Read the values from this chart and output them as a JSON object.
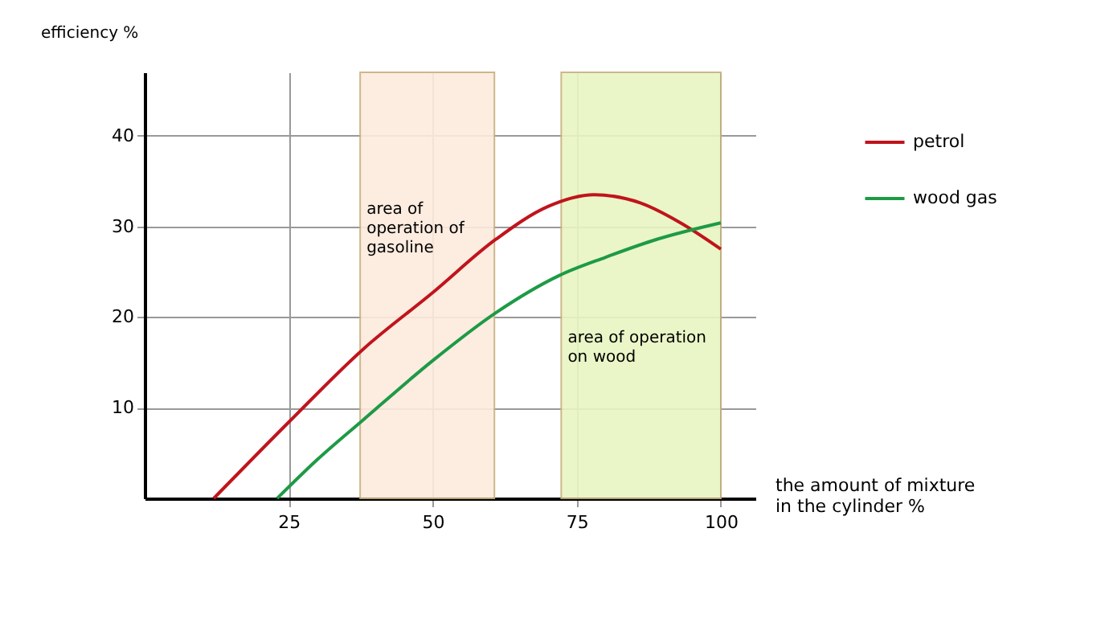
{
  "chart_data": {
    "type": "line",
    "xlabel": "the amount of mixture\nin the cylinder %",
    "ylabel": "efficiency %",
    "xlim": [
      0,
      106
    ],
    "ylim": [
      0,
      47
    ],
    "xticks": [
      25,
      50,
      75,
      100
    ],
    "yticks": [
      10,
      20,
      30,
      40
    ],
    "grid": true,
    "legend": "top right",
    "marker": "none",
    "line_style": "solid",
    "series": [
      {
        "name": "petrol",
        "color": "#c0141c",
        "x": [
          12,
          25,
          38,
          50,
          61,
          70,
          78,
          86,
          93,
          100
        ],
        "values": [
          0,
          8.4,
          16.5,
          22.7,
          28.6,
          32.2,
          33.5,
          32.6,
          30.4,
          27.5
        ]
      },
      {
        "name": "wood gas",
        "color": "#1e9a46",
        "x": [
          23,
          30,
          38,
          50,
          61,
          72,
          80,
          89,
          100
        ],
        "values": [
          0,
          4.3,
          8.7,
          15.2,
          20.5,
          24.6,
          26.6,
          28.6,
          30.4
        ]
      }
    ],
    "bands": [
      {
        "axis": "x",
        "from": 37.4,
        "to": 60.7,
        "label": "area of\noperation of\ngasoline",
        "color": "#fdebdd"
      },
      {
        "axis": "x",
        "from": 72.3,
        "to": 100,
        "label": "area of operation\non wood",
        "color": "#e8f6c2"
      }
    ]
  }
}
